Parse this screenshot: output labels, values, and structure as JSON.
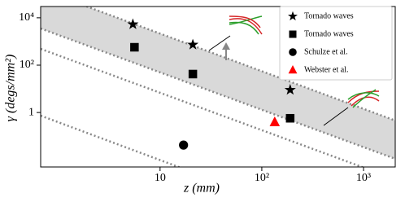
{
  "chart_data": {
    "type": "scatter",
    "x_label": "z (mm)",
    "y_label": "γ (degs/mm²)",
    "xscale": "log",
    "yscale": "log",
    "xlim": [
      0.67,
      2050
    ],
    "ylim": [
      0.005,
      30000
    ],
    "xticks": [
      10,
      {
        "value": 100,
        "label": "10²"
      },
      {
        "value": 1000,
        "label": "10³"
      }
    ],
    "yticks": [
      1,
      {
        "value": 100,
        "label": "10²"
      },
      {
        "value": 10000,
        "label": "10⁴"
      }
    ],
    "legend": "upper right",
    "series": [
      {
        "name": "Tornado waves",
        "marker": "star",
        "color": "#000000",
        "x": [
          5.4,
          21,
          190
        ],
        "values": [
          5300,
          730,
          9
        ]
      },
      {
        "name": "Tornado waves",
        "marker": "square",
        "color": "#000000",
        "x": [
          5.6,
          21,
          190
        ],
        "values": [
          570,
          42,
          0.57
        ]
      },
      {
        "name": "Schulze et al.",
        "marker": "circle",
        "color": "#000000",
        "x": [
          17
        ],
        "values": [
          0.042
        ]
      },
      {
        "name": "Webster et al.",
        "marker": "triangle",
        "color": "#ff0000",
        "x": [
          134
        ],
        "values": [
          0.39
        ]
      }
    ]
  }
}
